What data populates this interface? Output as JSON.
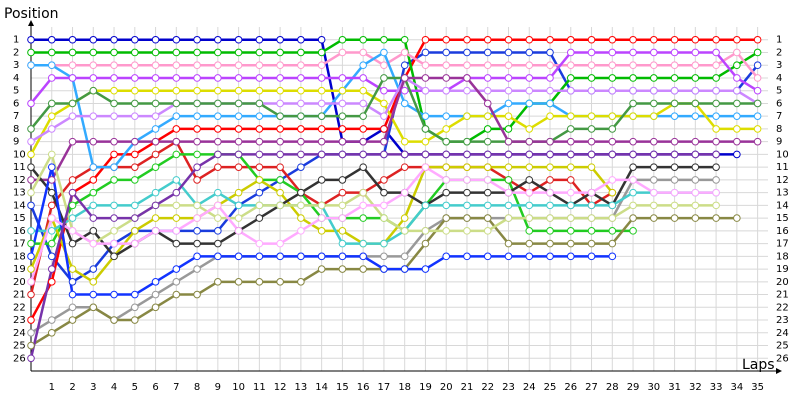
{
  "chart_data": {
    "type": "line",
    "y_label": "Position",
    "x_label": "Laps",
    "x": [
      0,
      1,
      2,
      3,
      4,
      5,
      6,
      7,
      8,
      9,
      10,
      11,
      12,
      13,
      14,
      15,
      16,
      17,
      18,
      19,
      20,
      21,
      22,
      23,
      24,
      25,
      26,
      27,
      28,
      29,
      30,
      31,
      32,
      33,
      34,
      35
    ],
    "xlim": [
      0,
      35.5
    ],
    "xticks": [
      1,
      2,
      3,
      4,
      5,
      6,
      7,
      8,
      9,
      10,
      11,
      12,
      13,
      14,
      15,
      16,
      17,
      18,
      19,
      20,
      21,
      22,
      23,
      24,
      25,
      26,
      27,
      28,
      29,
      30,
      31,
      32,
      33,
      34,
      35
    ],
    "ylim": [
      0,
      27
    ],
    "y_inverted": true,
    "yticks": [
      1,
      2,
      3,
      4,
      5,
      6,
      7,
      8,
      9,
      10,
      11,
      12,
      13,
      14,
      15,
      16,
      17,
      18,
      19,
      20,
      21,
      22,
      23,
      24,
      25,
      26
    ],
    "grid": true,
    "series": [
      {
        "color": "#0000cc",
        "values": [
          1,
          1,
          1,
          1,
          1,
          1,
          1,
          1,
          1,
          1,
          1,
          1,
          1,
          1,
          1,
          9,
          9,
          8,
          10,
          10,
          10,
          10,
          10,
          10,
          10,
          10,
          10,
          10,
          10,
          10,
          10,
          10,
          10,
          10,
          10,
          null
        ]
      },
      {
        "color": "#1a3cdd",
        "values": [
          14,
          18,
          20,
          19,
          17,
          16,
          16,
          16,
          16,
          16,
          14,
          13,
          12,
          11,
          10,
          10,
          10,
          10,
          3,
          2,
          2,
          2,
          2,
          2,
          2,
          2,
          5,
          5,
          5,
          5,
          5,
          5,
          5,
          5,
          5,
          3
        ]
      },
      {
        "color": "#ff0000",
        "values": [
          23,
          20,
          13,
          12,
          10,
          10,
          9,
          8,
          8,
          8,
          8,
          8,
          8,
          8,
          8,
          8,
          8,
          8,
          4,
          1,
          1,
          1,
          1,
          1,
          1,
          1,
          1,
          1,
          1,
          1,
          1,
          1,
          1,
          1,
          1,
          1
        ]
      },
      {
        "color": "#dd2222",
        "values": [
          21,
          14,
          12,
          11,
          11,
          11,
          10,
          9,
          12,
          11,
          11,
          11,
          11,
          13,
          14,
          13,
          13,
          12,
          11,
          11,
          11,
          11,
          11,
          12,
          13,
          12,
          12,
          14,
          13,
          null,
          null,
          null,
          null,
          null,
          null,
          null
        ]
      },
      {
        "color": "#00bb00",
        "values": [
          2,
          2,
          2,
          2,
          2,
          2,
          2,
          2,
          2,
          2,
          2,
          2,
          2,
          2,
          2,
          1,
          1,
          1,
          1,
          8,
          9,
          9,
          8,
          8,
          6,
          6,
          4,
          4,
          4,
          4,
          4,
          4,
          4,
          4,
          3,
          2
        ]
      },
      {
        "color": "#ff99cc",
        "values": [
          3,
          3,
          3,
          3,
          3,
          3,
          3,
          3,
          3,
          3,
          3,
          3,
          3,
          3,
          3,
          2,
          2,
          3,
          2,
          3,
          3,
          3,
          3,
          3,
          3,
          3,
          3,
          3,
          3,
          3,
          3,
          3,
          3,
          3,
          2,
          4
        ]
      },
      {
        "color": "#33aaff",
        "values": [
          3,
          3,
          4,
          11,
          11,
          9,
          8,
          7,
          7,
          7,
          7,
          7,
          7,
          7,
          7,
          5,
          3,
          2,
          6,
          7,
          7,
          7,
          7,
          6,
          6,
          6,
          7,
          7,
          7,
          7,
          7,
          7,
          7,
          7,
          7,
          7
        ]
      },
      {
        "color": "#bb44ff",
        "values": [
          6,
          4,
          4,
          4,
          4,
          4,
          4,
          4,
          4,
          4,
          4,
          4,
          4,
          4,
          4,
          4,
          4,
          5,
          5,
          5,
          5,
          4,
          4,
          4,
          4,
          4,
          2,
          2,
          2,
          2,
          2,
          2,
          2,
          2,
          4,
          5
        ]
      },
      {
        "color": "#dddd00",
        "values": [
          10,
          7,
          6,
          5,
          5,
          5,
          5,
          5,
          5,
          5,
          5,
          5,
          5,
          5,
          5,
          5,
          5,
          6,
          9,
          9,
          8,
          7,
          7,
          7,
          8,
          7,
          7,
          7,
          7,
          7,
          7,
          6,
          6,
          8,
          8,
          8
        ]
      },
      {
        "color": "#cc88ff",
        "values": [
          9,
          8,
          7,
          7,
          7,
          7,
          7,
          6,
          6,
          6,
          6,
          6,
          6,
          6,
          6,
          6,
          6,
          7,
          4,
          5,
          5,
          5,
          5,
          5,
          5,
          5,
          5,
          5,
          5,
          5,
          5,
          5,
          5,
          5,
          5,
          6
        ]
      },
      {
        "color": "#449944",
        "values": [
          8,
          6,
          6,
          5,
          6,
          6,
          6,
          6,
          6,
          6,
          6,
          6,
          7,
          7,
          7,
          7,
          7,
          4,
          4,
          8,
          9,
          9,
          9,
          9,
          9,
          9,
          8,
          8,
          8,
          6,
          6,
          6,
          6,
          6,
          6,
          6
        ]
      },
      {
        "color": "#993399",
        "values": [
          12,
          12,
          9,
          9,
          9,
          9,
          9,
          9,
          9,
          9,
          9,
          9,
          9,
          9,
          9,
          9,
          9,
          9,
          4,
          4,
          4,
          4,
          6,
          9,
          9,
          9,
          9,
          9,
          9,
          9,
          9,
          9,
          9,
          9,
          9,
          9
        ]
      },
      {
        "color": "#22cc22",
        "values": [
          17,
          17,
          14,
          13,
          12,
          12,
          11,
          10,
          10,
          10,
          10,
          12,
          12,
          13,
          15,
          15,
          15,
          15,
          16,
          14,
          12,
          12,
          12,
          12,
          16,
          16,
          16,
          16,
          16,
          16,
          null,
          null,
          null,
          null,
          null,
          null
        ]
      },
      {
        "color": "#cccc00",
        "values": [
          19,
          15,
          19,
          20,
          18,
          16,
          15,
          15,
          15,
          14,
          13,
          12,
          13,
          15,
          16,
          16,
          17,
          17,
          15,
          11,
          11,
          11,
          11,
          11,
          11,
          11,
          11,
          11,
          13,
          null,
          null,
          null,
          null,
          null,
          null,
          null
        ]
      },
      {
        "color": "#999999",
        "values": [
          24,
          23,
          22,
          22,
          23,
          22,
          21,
          20,
          19,
          18,
          18,
          18,
          18,
          18,
          18,
          18,
          18,
          18,
          18,
          16,
          15,
          15,
          15,
          15,
          15,
          15,
          15,
          15,
          15,
          12,
          12,
          12,
          12,
          12,
          null,
          null
        ]
      },
      {
        "color": "#888844",
        "values": [
          25,
          24,
          23,
          22,
          23,
          23,
          22,
          21,
          21,
          20,
          20,
          20,
          20,
          20,
          19,
          19,
          19,
          19,
          19,
          17,
          15,
          15,
          15,
          17,
          17,
          17,
          17,
          17,
          17,
          15,
          15,
          15,
          15,
          15,
          15,
          null
        ]
      },
      {
        "color": "#333333",
        "values": [
          11,
          13,
          17,
          16,
          18,
          17,
          16,
          17,
          17,
          17,
          16,
          15,
          14,
          13,
          12,
          12,
          11,
          13,
          13,
          14,
          13,
          13,
          13,
          13,
          12,
          13,
          14,
          13,
          14,
          11,
          11,
          11,
          11,
          11,
          null,
          null
        ]
      },
      {
        "color": "#44cccc",
        "values": [
          16,
          16,
          15,
          14,
          14,
          14,
          13,
          12,
          14,
          13,
          14,
          14,
          14,
          14,
          14,
          17,
          17,
          17,
          16,
          14,
          14,
          14,
          14,
          14,
          14,
          14,
          14,
          14,
          14,
          13,
          13,
          13,
          13,
          13,
          null,
          null
        ]
      },
      {
        "color": "#1133ff",
        "values": [
          18,
          11,
          21,
          21,
          21,
          21,
          20,
          19,
          18,
          18,
          18,
          18,
          18,
          18,
          18,
          18,
          18,
          19,
          19,
          19,
          18,
          18,
          18,
          18,
          18,
          18,
          18,
          18,
          18,
          null,
          null,
          null,
          null,
          null,
          null,
          null
        ]
      },
      {
        "color": "#ccdd88",
        "values": [
          13,
          10,
          16,
          17,
          16,
          15,
          14,
          14,
          14,
          15,
          15,
          14,
          14,
          14,
          14,
          14,
          13,
          15,
          16,
          16,
          16,
          16,
          16,
          15,
          15,
          15,
          15,
          15,
          15,
          14,
          14,
          14,
          14,
          14,
          null,
          null
        ]
      },
      {
        "color": "#ffaaff",
        "values": [
          20,
          15,
          16,
          17,
          17,
          17,
          16,
          16,
          15,
          14,
          16,
          17,
          17,
          16,
          15,
          15,
          14,
          14,
          13,
          11,
          12,
          12,
          12,
          13,
          13,
          13,
          13,
          13,
          12,
          12,
          13,
          13,
          13,
          13,
          null,
          null
        ]
      },
      {
        "color": "#7733aa",
        "values": [
          26,
          19,
          13,
          15,
          15,
          15,
          14,
          13,
          11,
          10,
          10,
          10,
          10,
          10,
          10,
          10,
          10,
          10,
          10,
          10,
          10,
          10,
          10,
          10,
          10,
          10,
          10,
          10,
          10,
          10,
          10,
          10,
          10,
          10,
          null,
          null
        ]
      }
    ]
  }
}
